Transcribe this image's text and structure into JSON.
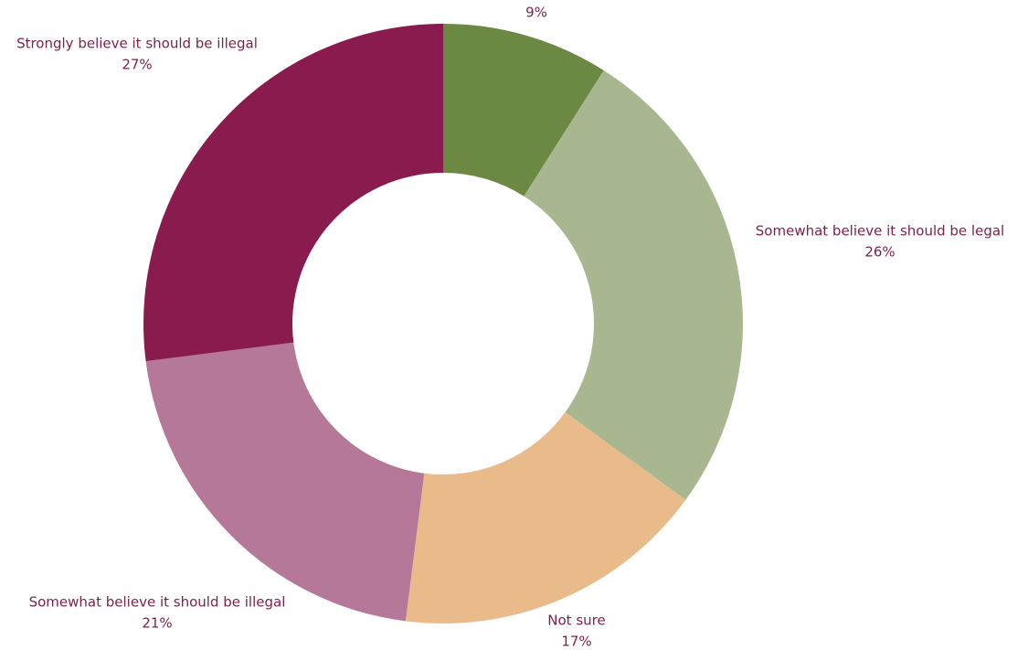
{
  "chart_data": {
    "type": "donut",
    "categories": [
      null,
      "Somewhat believe it should be legal",
      "Not sure",
      "Somewhat believe it should be illegal",
      "Strongly believe it should be illegal"
    ],
    "values": [
      9,
      26,
      17,
      21,
      27
    ],
    "value_labels": [
      "9%",
      "26%",
      "17%",
      "21%",
      "27%"
    ],
    "colors": [
      "#6b8943",
      "#a8b78f",
      "#e9bb8a",
      "#b57898",
      "#8a1b4e"
    ]
  }
}
